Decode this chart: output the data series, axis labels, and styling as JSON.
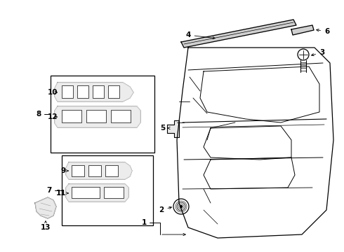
{
  "bg_color": "#ffffff",
  "fig_width": 4.9,
  "fig_height": 3.6,
  "dpi": 100,
  "line_color": "#000000",
  "text_color": "#000000",
  "label_fontsize": 7.5
}
